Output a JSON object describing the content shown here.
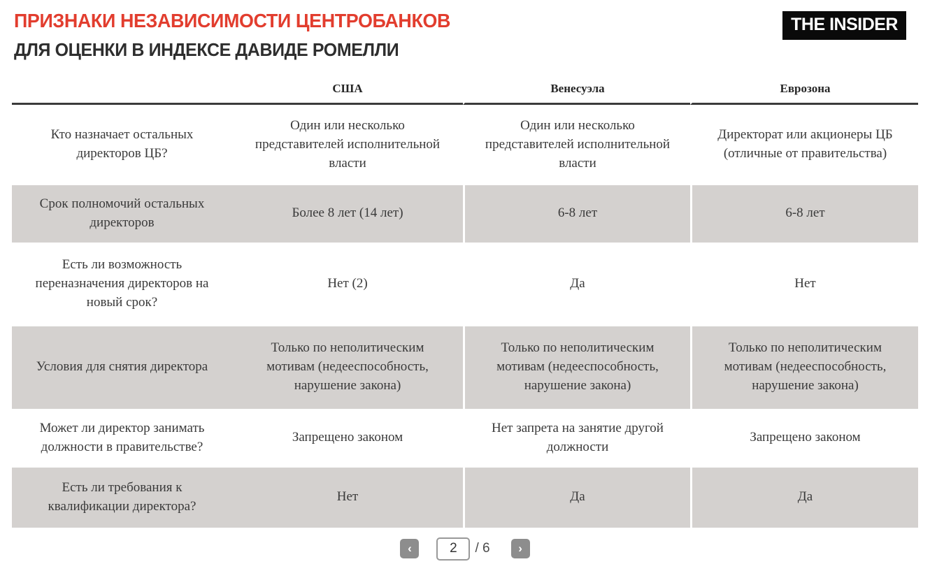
{
  "header": {
    "title": "ПРИЗНАКИ НЕЗАВИСИМОСТИ ЦЕНТРОБАНКОВ",
    "subtitle": "ДЛЯ ОЦЕНКИ В ИНДЕКСЕ ДАВИДЕ РОМЕЛЛИ",
    "logo": "THE INSIDER"
  },
  "colors": {
    "title_accent": "#e23d2e",
    "subtitle_text": "#2e2e2e",
    "logo_bg": "#0a0a0a",
    "logo_text": "#ffffff",
    "row_shaded_bg": "#d4d1cf",
    "header_rule": "#3b3b3b",
    "body_text": "#3a3a3a",
    "pagination_button_bg": "#8d8d8d"
  },
  "table": {
    "columns": [
      "США",
      "Венесуэла",
      "Еврозона"
    ],
    "rows": [
      {
        "label": "Кто назначает остальных директоров ЦБ?",
        "values": [
          "Один или несколько представителей исполнительной власти",
          "Один или несколько представителей исполнительной власти",
          "Директорат или акционеры ЦБ (отличные от правительства)"
        ]
      },
      {
        "label": "Срок полномочий остальных директоров",
        "values": [
          "Более 8 лет (14 лет)",
          "6-8 лет",
          "6-8 лет"
        ]
      },
      {
        "label": "Есть ли возможность переназначения директоров на новый срок?",
        "values": [
          "Нет (2)",
          "Да",
          "Нет"
        ]
      },
      {
        "label": "Условия для снятия директора",
        "values": [
          "Только по неполитическим мотивам (недееспособность, нарушение закона)",
          "Только по неполитическим мотивам (недееспособность, нарушение закона)",
          "Только по неполитическим мотивам (недееспособность, нарушение закона)"
        ]
      },
      {
        "label": "Может ли директор занимать должности в правительстве?",
        "values": [
          "Запрещено законом",
          "Нет запрета на занятие другой должности",
          "Запрещено законом"
        ]
      },
      {
        "label": "Есть ли требования к квалификации директора?",
        "values": [
          "Нет",
          "Да",
          "Да"
        ]
      }
    ]
  },
  "pagination": {
    "prev_icon": "‹",
    "next_icon": "›",
    "current_page": "2",
    "total_label": "/ 6"
  }
}
